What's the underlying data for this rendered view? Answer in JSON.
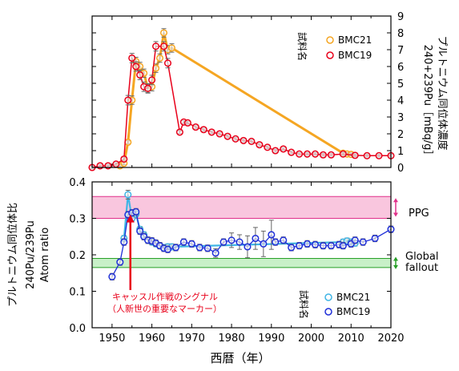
{
  "xaxis": {
    "label": "西暦（年）",
    "range": [
      1945,
      2020
    ],
    "ticks": [
      1950,
      1960,
      1970,
      1980,
      1990,
      2000,
      2010,
      2020
    ]
  },
  "top_panel": {
    "ylabel": "プルトニウム同位体濃度",
    "ylabel2": "240+239Pu［mBq/g］",
    "ylim": [
      0,
      9
    ],
    "yticks": [
      0,
      1,
      2,
      3,
      4,
      5,
      6,
      7,
      8,
      9
    ],
    "legend_title": "試料名"
  },
  "bottom_panel": {
    "ylabel": "プルトニウム同位体比",
    "ylabel2": "240Pu/239Pu",
    "ylabel3": "Atom ratio",
    "ylim": [
      0,
      0.4
    ],
    "yticks": [
      "0.0",
      "0.1",
      "0.2",
      "0.3",
      "0.4"
    ],
    "legend_title": "試料名",
    "band_ppg": {
      "label": "PPG",
      "range": [
        0.3,
        0.36
      ]
    },
    "band_global": {
      "label1": "Global",
      "label2": "fallout",
      "range": [
        0.165,
        0.19
      ]
    },
    "annotation": {
      "line1": "キャッスル作戦のシグナル",
      "line2": "（人新世の重要なマーカー）",
      "year": 1954,
      "value": 0.315
    }
  },
  "chart_data": [
    {
      "type": "line",
      "ylabel": "240+239Pu［mBq/g］",
      "xlim": [
        1945,
        2020
      ],
      "ylim": [
        0,
        9
      ],
      "series": [
        {
          "name": "BMC21",
          "color": "#f5a623",
          "points": [
            [
              1952,
              0.1
            ],
            [
              1953,
              0.25
            ],
            [
              1954,
              1.5
            ],
            [
              1955,
              4.0
            ],
            [
              1956,
              6.3
            ],
            [
              1957,
              6.0
            ],
            [
              1958,
              5.6
            ],
            [
              1959,
              4.7
            ],
            [
              1960,
              4.8
            ],
            [
              1961,
              5.9
            ],
            [
              1962,
              6.5
            ],
            [
              1963,
              8.0
            ],
            [
              1964,
              7.0
            ],
            [
              1965,
              7.1
            ],
            [
              2008,
              0.85
            ],
            [
              2009,
              0.8
            ],
            [
              2010,
              0.78
            ]
          ]
        },
        {
          "name": "BMC19",
          "color": "#e8001a",
          "points": [
            [
              1945,
              0.0
            ],
            [
              1947,
              0.1
            ],
            [
              1949,
              0.1
            ],
            [
              1951,
              0.2
            ],
            [
              1953,
              0.5
            ],
            [
              1954,
              4.0
            ],
            [
              1955,
              6.5
            ],
            [
              1956,
              6.0
            ],
            [
              1957,
              5.5
            ],
            [
              1958,
              4.8
            ],
            [
              1959,
              4.7
            ],
            [
              1960,
              5.2
            ],
            [
              1961,
              7.2
            ],
            [
              1963,
              7.2
            ],
            [
              1964,
              6.2
            ],
            [
              1967,
              2.1
            ],
            [
              1968,
              2.7
            ],
            [
              1969,
              2.65
            ],
            [
              1971,
              2.4
            ],
            [
              1973,
              2.25
            ],
            [
              1975,
              2.1
            ],
            [
              1977,
              2.0
            ],
            [
              1979,
              1.85
            ],
            [
              1981,
              1.7
            ],
            [
              1983,
              1.6
            ],
            [
              1985,
              1.55
            ],
            [
              1987,
              1.35
            ],
            [
              1989,
              1.2
            ],
            [
              1991,
              1.0
            ],
            [
              1993,
              1.1
            ],
            [
              1995,
              0.9
            ],
            [
              1997,
              0.8
            ],
            [
              1999,
              0.8
            ],
            [
              2001,
              0.8
            ],
            [
              2003,
              0.75
            ],
            [
              2005,
              0.75
            ],
            [
              2008,
              0.8
            ],
            [
              2011,
              0.72
            ],
            [
              2014,
              0.7
            ],
            [
              2017,
              0.7
            ],
            [
              2020,
              0.7
            ]
          ]
        }
      ]
    },
    {
      "type": "line",
      "ylabel": "240Pu/239Pu Atom ratio",
      "xlim": [
        1945,
        2020
      ],
      "ylim": [
        0,
        0.4
      ],
      "series": [
        {
          "name": "BMC21",
          "color": "#3fb5e5",
          "points": [
            [
              1953,
              0.245
            ],
            [
              1954,
              0.365
            ],
            [
              1955,
              0.3
            ],
            [
              1956,
              0.312
            ],
            [
              1957,
              0.27
            ],
            [
              1958,
              0.255
            ],
            [
              1959,
              0.24
            ],
            [
              1960,
              0.235
            ],
            [
              1961,
              0.23
            ],
            [
              1962,
              0.225
            ],
            [
              1963,
              0.22
            ],
            [
              1964,
              0.222
            ],
            [
              1965,
              0.222
            ],
            [
              2008,
              0.235
            ],
            [
              2009,
              0.238
            ],
            [
              2010,
              0.235
            ],
            [
              2011,
              0.232
            ]
          ]
        },
        {
          "name": "BMC19",
          "color": "#1f2fd8",
          "points": [
            [
              1950,
              0.14
            ],
            [
              1952,
              0.18
            ],
            [
              1953,
              0.235
            ],
            [
              1954,
              0.31
            ],
            [
              1955,
              0.315
            ],
            [
              1956,
              0.318
            ],
            [
              1957,
              0.265
            ],
            [
              1958,
              0.25
            ],
            [
              1959,
              0.24
            ],
            [
              1960,
              0.238
            ],
            [
              1961,
              0.232
            ],
            [
              1962,
              0.225
            ],
            [
              1963,
              0.218
            ],
            [
              1964,
              0.215
            ],
            [
              1966,
              0.22
            ],
            [
              1968,
              0.235
            ],
            [
              1970,
              0.23
            ],
            [
              1972,
              0.22
            ],
            [
              1974,
              0.218
            ],
            [
              1976,
              0.205
            ],
            [
              1978,
              0.235
            ],
            [
              1980,
              0.24
            ],
            [
              1982,
              0.235
            ],
            [
              1984,
              0.222
            ],
            [
              1986,
              0.245
            ],
            [
              1988,
              0.23
            ],
            [
              1990,
              0.255
            ],
            [
              1991,
              0.235
            ],
            [
              1993,
              0.24
            ],
            [
              1995,
              0.22
            ],
            [
              1997,
              0.225
            ],
            [
              1999,
              0.23
            ],
            [
              2001,
              0.228
            ],
            [
              2003,
              0.225
            ],
            [
              2005,
              0.225
            ],
            [
              2007,
              0.228
            ],
            [
              2008,
              0.225
            ],
            [
              2010,
              0.23
            ],
            [
              2011,
              0.24
            ],
            [
              2013,
              0.235
            ],
            [
              2016,
              0.245
            ],
            [
              2020,
              0.27
            ]
          ]
        }
      ]
    }
  ]
}
